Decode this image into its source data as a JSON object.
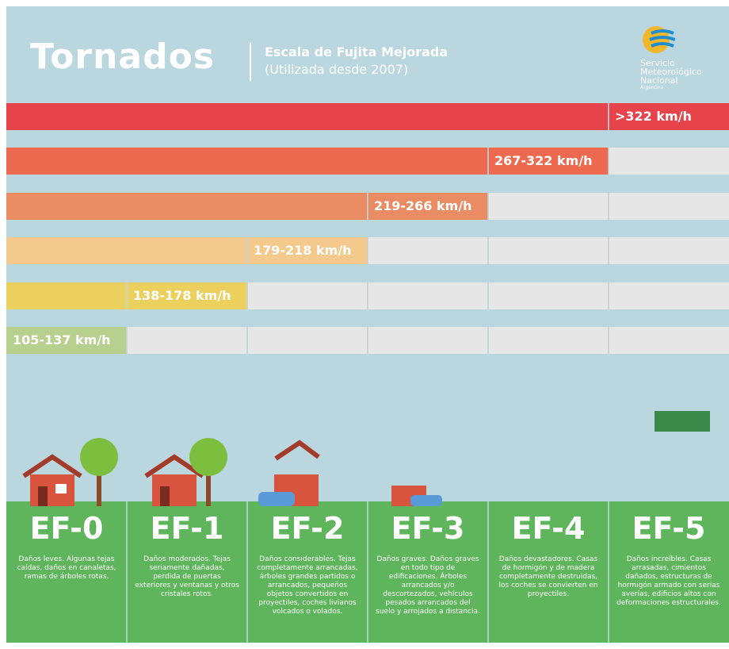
{
  "header": {
    "title": "Tornados",
    "subtitle": "Escala de Fujita Mejorada",
    "note": "(Utilizada desde 2007)",
    "logo": {
      "line1": "Servicio",
      "line2": "Meteorológico",
      "line3": "Nacional",
      "line4": "Argentina"
    }
  },
  "scale": [
    {
      "level": "EF-0",
      "speed": "105-137 km/h",
      "color": "#b7d08d",
      "description": "Daños leves. Algunas tejas caídas, daños en canaletas, ramas de árboles rotas."
    },
    {
      "level": "EF-1",
      "speed": "138-178 km/h",
      "color": "#ecd05e",
      "description": "Daños moderados. Tejas seriamente dañadas, perdida de puertas exteriores y ventanas y otros cristales rotos."
    },
    {
      "level": "EF-2",
      "speed": "179-218 km/h",
      "color": "#f3c98c",
      "description": "Daños considerables. Tejas completamente arrancadas, árboles grandes partidos o arrancados, pequeños objetos convertidos en proyectiles, coches livianos volcados o volados."
    },
    {
      "level": "EF-3",
      "speed": "219-266 km/h",
      "color": "#e98b63",
      "description": "Daños graves. Daños graves en todo tipo de edificaciones. Árboles arrancados y/o descortezados, vehículos pesados arrancados del suelo y arrojados a distancia."
    },
    {
      "level": "EF-4",
      "speed": "267-322 km/h",
      "color": "#ed6a50",
      "description": "Daños devastadores. Casas de hormigón y de madera completamente destruidas, los coches se convierten en proyectiles."
    },
    {
      "level": "EF-5",
      "speed": ">322 km/h",
      "color": "#e6434b",
      "description": "Daños increíbles. Casas arrasadas, cimientos dañados, estructuras de hormigón armado con serias averías, edificios altos con deformaciones estructurales."
    }
  ]
}
